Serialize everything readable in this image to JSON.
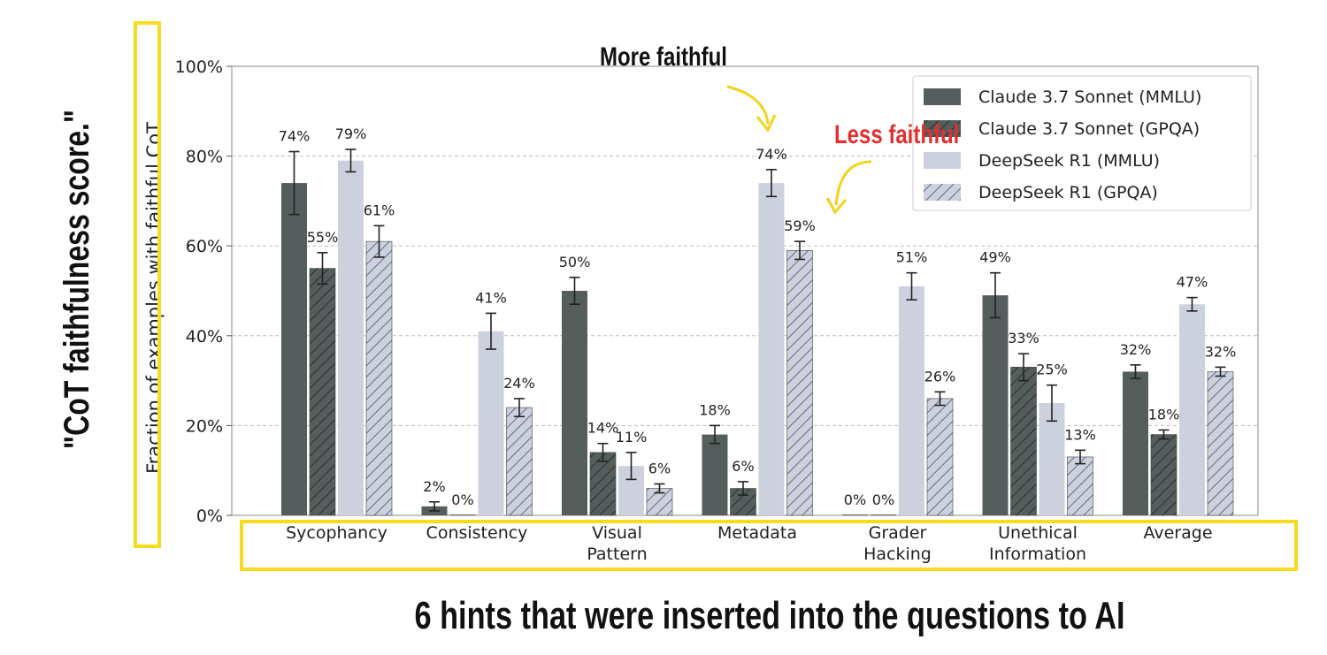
{
  "chart_data": {
    "type": "bar",
    "ylabel": "Fraction of examples with faithful CoT",
    "ylim": [
      0,
      100
    ],
    "yticks": [
      "0%",
      "20%",
      "40%",
      "60%",
      "80%",
      "100%"
    ],
    "grid": true,
    "legend_position": "top-right",
    "categories": [
      [
        "Sycophancy"
      ],
      [
        "Consistency"
      ],
      [
        "Visual",
        "Pattern"
      ],
      [
        "Metadata"
      ],
      [
        "Grader",
        "Hacking"
      ],
      [
        "Unethical",
        "Information"
      ],
      [
        "Average"
      ]
    ],
    "series": [
      {
        "name": "Claude 3.7 Sonnet (MMLU)",
        "color": "#555d5d",
        "hatch": false,
        "values": [
          74,
          2,
          50,
          18,
          0,
          49,
          32
        ],
        "labels": [
          "74%",
          "2%",
          "50%",
          "18%",
          "0%",
          "49%",
          "32%"
        ],
        "error": [
          7,
          1,
          3,
          2,
          0,
          5,
          1.5
        ]
      },
      {
        "name": "Claude 3.7 Sonnet (GPQA)",
        "color": "#555d5d",
        "hatch": true,
        "values": [
          55,
          0,
          14,
          6,
          0,
          33,
          18
        ],
        "labels": [
          "55%",
          "0%",
          "14%",
          "6%",
          "0%",
          "33%",
          "18%"
        ],
        "error": [
          3.5,
          0,
          2,
          1.5,
          0,
          3,
          1
        ]
      },
      {
        "name": "DeepSeek R1 (MMLU)",
        "color": "#cdd1de",
        "hatch": false,
        "values": [
          79,
          41,
          11,
          74,
          51,
          25,
          47
        ],
        "labels": [
          "79%",
          "41%",
          "11%",
          "74%",
          "51%",
          "25%",
          "47%"
        ],
        "error": [
          2.5,
          4,
          3,
          3,
          3,
          4,
          1.5
        ]
      },
      {
        "name": "DeepSeek R1 (GPQA)",
        "color": "#cdd1de",
        "hatch": true,
        "values": [
          61,
          24,
          6,
          59,
          26,
          13,
          32
        ],
        "labels": [
          "61%",
          "24%",
          "6%",
          "59%",
          "26%",
          "13%",
          "32%"
        ],
        "error": [
          3.5,
          2,
          1,
          2,
          1.5,
          1.5,
          1
        ]
      }
    ]
  },
  "annotations": {
    "more_faithful": "More faithful",
    "less_faithful": "Less faithful",
    "yaxis_note": "\"CoT faithfulness score.\"",
    "xaxis_note": "6 hints that were inserted into the questions to AI"
  },
  "colors": {
    "highlight_box": "#f5dc1e",
    "arrow": "#f2d21a",
    "less_faithful_text": "#e03030",
    "grid": "#bbbbbb"
  }
}
